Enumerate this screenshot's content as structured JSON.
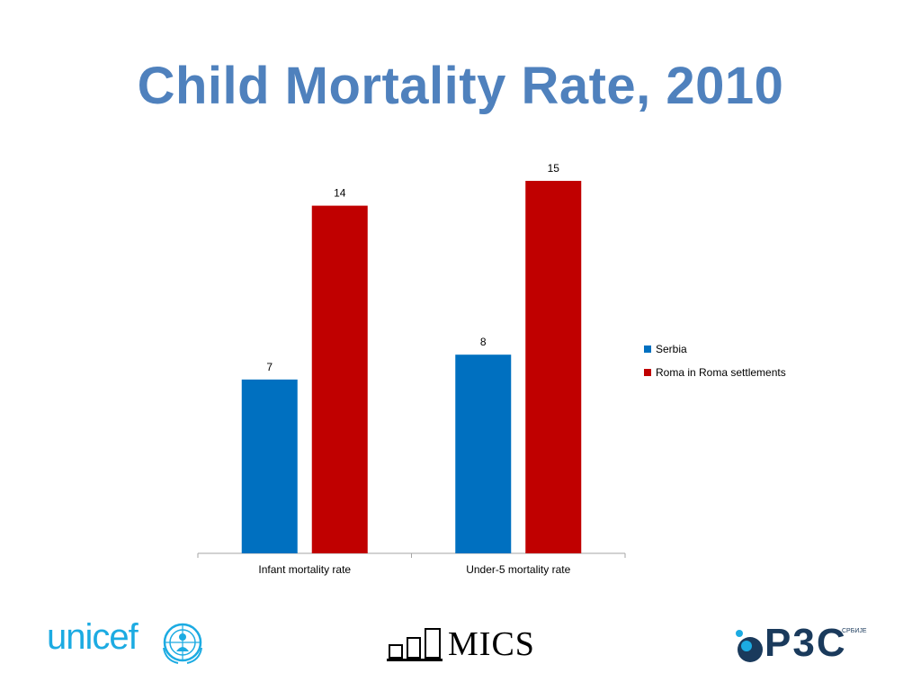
{
  "slide": {
    "title": "Child Mortality Rate, 2010"
  },
  "chart_data": {
    "type": "bar",
    "categories": [
      "Infant mortality rate",
      "Under-5 mortality rate"
    ],
    "series": [
      {
        "name": "Serbia",
        "values": [
          7,
          8
        ],
        "color": "#0070c0"
      },
      {
        "name": "Roma in Roma settlements",
        "values": [
          14,
          15
        ],
        "color": "#c00000"
      }
    ],
    "title": "",
    "xlabel": "",
    "ylabel": "",
    "ylim": [
      0,
      16
    ],
    "grid": false,
    "legend_position": "right",
    "data_labels": true
  },
  "logos": {
    "unicef": {
      "text": "unicef",
      "color": "#1cabe2",
      "icon": "un-emblem-icon"
    },
    "mics": {
      "text": "MICS",
      "icon": "bar-steps-icon"
    },
    "rzs": {
      "text": "P3C",
      "subtext": "СРБИЈЕ",
      "color": "#1a3a5c",
      "icon": "bubble-icon"
    }
  }
}
